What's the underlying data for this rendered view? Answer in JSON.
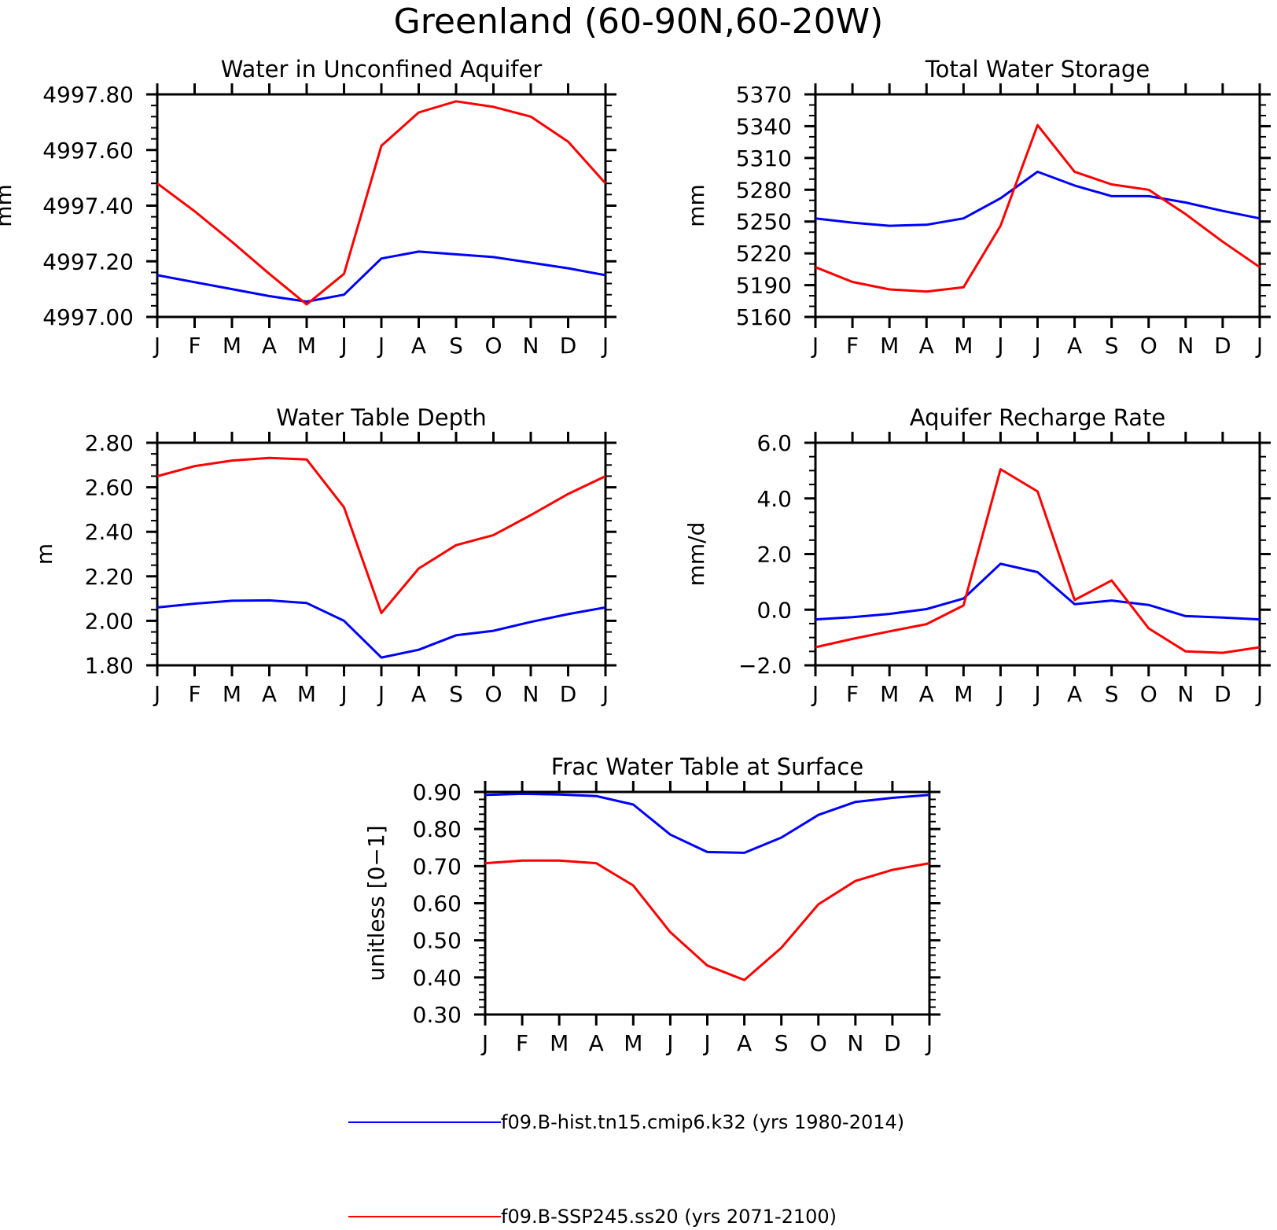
{
  "title": "Greenland (60-90N,60-20W)",
  "colors": {
    "hist": "#0000ff",
    "ssp": "#ff0000",
    "axis": "#000000"
  },
  "legend": [
    {
      "label": "f09.B-hist.tn15.cmip6.k32 (yrs 1980-2014)",
      "color": "#0000ff"
    },
    {
      "label": "f09.B-SSP245.ss20 (yrs 2071-2100)",
      "color": "#ff0000"
    }
  ],
  "chart_data": [
    {
      "type": "line",
      "title": "Water in Unconfined Aquifer",
      "ylabel": "mm",
      "xlabel": "",
      "categories": [
        "J",
        "F",
        "M",
        "A",
        "M",
        "J",
        "J",
        "A",
        "S",
        "O",
        "N",
        "D",
        "J"
      ],
      "ylim": [
        4997.0,
        4997.8
      ],
      "yticks": [
        "4997.00",
        "4997.20",
        "4997.40",
        "4997.60",
        "4997.80"
      ],
      "yticks_values": [
        4997.0,
        4997.2,
        4997.4,
        4997.6,
        4997.8
      ],
      "minor_per_major": 5,
      "series": [
        {
          "key": "hist",
          "values": [
            4997.15,
            4997.125,
            4997.1,
            4997.075,
            4997.055,
            4997.08,
            4997.21,
            4997.235,
            4997.225,
            4997.215,
            4997.195,
            4997.175,
            4997.15
          ]
        },
        {
          "key": "ssp",
          "values": [
            4997.48,
            4997.38,
            4997.27,
            4997.155,
            4997.045,
            4997.155,
            4997.615,
            4997.735,
            4997.775,
            4997.755,
            4997.72,
            4997.63,
            4997.48
          ]
        }
      ]
    },
    {
      "type": "line",
      "title": "Total Water Storage",
      "ylabel": "mm",
      "xlabel": "",
      "categories": [
        "J",
        "F",
        "M",
        "A",
        "M",
        "J",
        "J",
        "A",
        "S",
        "O",
        "N",
        "D",
        "J"
      ],
      "ylim": [
        5160,
        5370
      ],
      "yticks": [
        "5160",
        "5190",
        "5220",
        "5250",
        "5280",
        "5310",
        "5340",
        "5370"
      ],
      "yticks_values": [
        5160,
        5190,
        5220,
        5250,
        5280,
        5310,
        5340,
        5370
      ],
      "minor_per_major": 3,
      "series": [
        {
          "key": "hist",
          "values": [
            5253,
            5249,
            5246,
            5247,
            5253,
            5272,
            5297,
            5284,
            5274,
            5274,
            5268,
            5260,
            5253
          ]
        },
        {
          "key": "ssp",
          "values": [
            5207,
            5193,
            5186,
            5184,
            5188,
            5246,
            5341,
            5297,
            5285,
            5280,
            5257,
            5231,
            5207
          ]
        }
      ]
    },
    {
      "type": "line",
      "title": "Water Table Depth",
      "ylabel": "m",
      "xlabel": "",
      "categories": [
        "J",
        "F",
        "M",
        "A",
        "M",
        "J",
        "J",
        "A",
        "S",
        "O",
        "N",
        "D",
        "J"
      ],
      "ylim": [
        1.8,
        2.8
      ],
      "yticks": [
        "1.80",
        "2.00",
        "2.20",
        "2.40",
        "2.60",
        "2.80"
      ],
      "yticks_values": [
        1.8,
        2.0,
        2.2,
        2.4,
        2.6,
        2.8
      ],
      "minor_per_major": 4,
      "series": [
        {
          "key": "hist",
          "values": [
            2.06,
            2.077,
            2.09,
            2.092,
            2.08,
            2.0,
            1.835,
            1.87,
            1.935,
            1.955,
            1.995,
            2.03,
            2.06
          ]
        },
        {
          "key": "ssp",
          "values": [
            2.65,
            2.695,
            2.72,
            2.732,
            2.725,
            2.51,
            2.035,
            2.235,
            2.34,
            2.385,
            2.475,
            2.57,
            2.65
          ]
        }
      ]
    },
    {
      "type": "line",
      "title": "Aquifer Recharge Rate",
      "ylabel": "mm/d",
      "xlabel": "",
      "categories": [
        "J",
        "F",
        "M",
        "A",
        "M",
        "J",
        "J",
        "A",
        "S",
        "O",
        "N",
        "D",
        "J"
      ],
      "ylim": [
        -2.0,
        6.0
      ],
      "yticks": [
        "−2.0",
        "0.0",
        "2.0",
        "4.0",
        "6.0"
      ],
      "yticks_values": [
        -2.0,
        0.0,
        2.0,
        4.0,
        6.0
      ],
      "minor_per_major": 4,
      "series": [
        {
          "key": "hist",
          "values": [
            -0.35,
            -0.27,
            -0.15,
            0.02,
            0.4,
            1.65,
            1.35,
            0.2,
            0.33,
            0.17,
            -0.23,
            -0.28,
            -0.35
          ]
        },
        {
          "key": "ssp",
          "values": [
            -1.35,
            -1.05,
            -0.78,
            -0.52,
            0.15,
            5.05,
            4.25,
            0.35,
            1.05,
            -0.67,
            -1.5,
            -1.55,
            -1.35
          ]
        }
      ]
    },
    {
      "type": "line",
      "title": "Frac Water Table at Surface",
      "ylabel": "unitless [0−1]",
      "xlabel": "",
      "categories": [
        "J",
        "F",
        "M",
        "A",
        "M",
        "J",
        "J",
        "A",
        "S",
        "O",
        "N",
        "D",
        "J"
      ],
      "ylim": [
        0.3,
        0.9
      ],
      "yticks": [
        "0.30",
        "0.40",
        "0.50",
        "0.60",
        "0.70",
        "0.80",
        "0.90"
      ],
      "yticks_values": [
        0.3,
        0.4,
        0.5,
        0.6,
        0.7,
        0.8,
        0.9
      ],
      "minor_per_major": 5,
      "series": [
        {
          "key": "hist",
          "values": [
            0.892,
            0.895,
            0.893,
            0.889,
            0.866,
            0.785,
            0.738,
            0.736,
            0.777,
            0.838,
            0.873,
            0.884,
            0.892
          ]
        },
        {
          "key": "ssp",
          "values": [
            0.708,
            0.715,
            0.715,
            0.708,
            0.648,
            0.522,
            0.432,
            0.393,
            0.48,
            0.597,
            0.66,
            0.69,
            0.708
          ]
        }
      ]
    }
  ]
}
